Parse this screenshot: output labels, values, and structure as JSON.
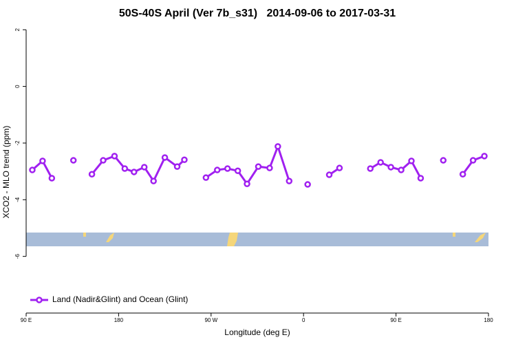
{
  "chart_data": {
    "type": "line",
    "title": "50S-40S April (Ver 7b_s31)   2014-09-06 to 2017-03-31",
    "x_label": "Longitude (deg E)",
    "y_label": "XCO2 - MLO trend (ppm)",
    "xlim": [
      90,
      540
    ],
    "xticks": [
      {
        "value": 90,
        "label": "90 E"
      },
      {
        "value": 180,
        "label": "180"
      },
      {
        "value": 270,
        "label": "90 W"
      },
      {
        "value": 360,
        "label": "0"
      },
      {
        "value": 450,
        "label": "90 E"
      },
      {
        "value": 540,
        "label": "180"
      }
    ],
    "ylim": [
      -8,
      2.2
    ],
    "yticks": [
      -6,
      -4,
      -2,
      0,
      2
    ],
    "legend": "bottom-left",
    "series": [
      {
        "name": "Land (Nadir&Glint) and Ocean (Glint)",
        "color": "#a020f0",
        "x": [
          96,
          106,
          115,
          null,
          136,
          null,
          154,
          165,
          176,
          186,
          195,
          205,
          214,
          225,
          237,
          244,
          null,
          265,
          276,
          286,
          296,
          305,
          316,
          327,
          335,
          346,
          null,
          364,
          null,
          385,
          395,
          null,
          425,
          435,
          445,
          455,
          465,
          474,
          null,
          496,
          null,
          515,
          525,
          536
        ],
        "values": [
          -2.95,
          -2.63,
          -3.24,
          null,
          -2.61,
          null,
          -3.1,
          -2.61,
          -2.46,
          -2.9,
          -3.02,
          -2.85,
          -3.34,
          -2.51,
          -2.83,
          -2.59,
          null,
          -3.22,
          -2.95,
          -2.9,
          -2.98,
          -3.44,
          -2.83,
          -2.88,
          -2.12,
          -3.34,
          null,
          -3.46,
          null,
          -3.12,
          -2.88,
          null,
          -2.9,
          -2.68,
          -2.85,
          -2.95,
          -2.63,
          -3.24,
          null,
          -2.61,
          null,
          -3.1,
          -2.61,
          -2.46
        ]
      }
    ]
  }
}
